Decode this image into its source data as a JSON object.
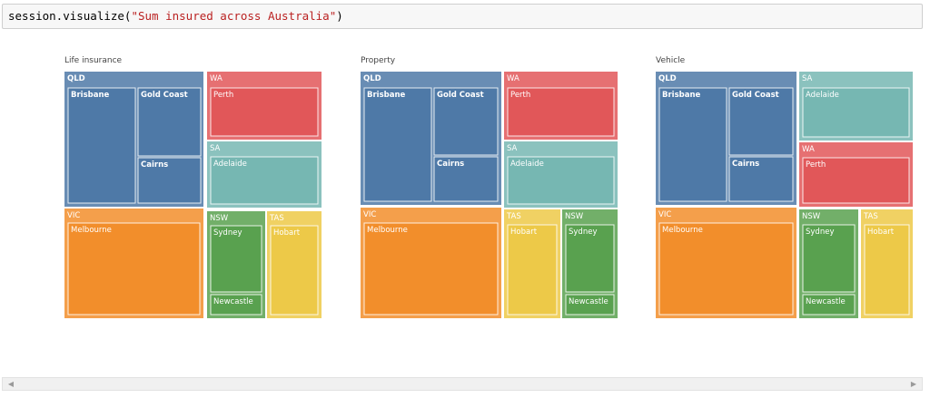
{
  "cell": {
    "code_prefix": "session.visualize(",
    "code_string": "\"Sum insured across Australia\"",
    "code_suffix": ")"
  },
  "colors": {
    "QLD": "#4e79a7",
    "WA": "#e15759",
    "SA": "#76b7b2",
    "VIC": "#f28e2b",
    "NSW": "#59a14f",
    "TAS": "#edc948"
  },
  "charts": [
    {
      "title": "Life insurance",
      "states": [
        {
          "name": "QLD",
          "cities": [
            "Brisbane",
            "Gold Coast",
            "Cairns"
          ]
        },
        {
          "name": "WA",
          "cities": [
            "Perth"
          ]
        },
        {
          "name": "SA",
          "cities": [
            "Adelaide"
          ]
        },
        {
          "name": "VIC",
          "cities": [
            "Melbourne"
          ]
        },
        {
          "name": "NSW",
          "cities": [
            "Sydney",
            "Newcastle"
          ]
        },
        {
          "name": "TAS",
          "cities": [
            "Hobart"
          ]
        }
      ]
    },
    {
      "title": "Property",
      "states": [
        {
          "name": "QLD",
          "cities": [
            "Brisbane",
            "Gold Coast",
            "Cairns"
          ]
        },
        {
          "name": "WA",
          "cities": [
            "Perth"
          ]
        },
        {
          "name": "SA",
          "cities": [
            "Adelaide"
          ]
        },
        {
          "name": "VIC",
          "cities": [
            "Melbourne"
          ]
        },
        {
          "name": "TAS",
          "cities": [
            "Hobart"
          ]
        },
        {
          "name": "NSW",
          "cities": [
            "Sydney",
            "Newcastle"
          ]
        }
      ]
    },
    {
      "title": "Vehicle",
      "states": [
        {
          "name": "QLD",
          "cities": [
            "Brisbane",
            "Gold Coast",
            "Cairns"
          ]
        },
        {
          "name": "SA",
          "cities": [
            "Adelaide"
          ]
        },
        {
          "name": "WA",
          "cities": [
            "Perth"
          ]
        },
        {
          "name": "VIC",
          "cities": [
            "Melbourne"
          ]
        },
        {
          "name": "NSW",
          "cities": [
            "Sydney",
            "Newcastle"
          ]
        },
        {
          "name": "TAS",
          "cities": [
            "Hobart"
          ]
        }
      ]
    }
  ],
  "scrollbar": {
    "left_arrow": "◀",
    "right_arrow": "▶"
  }
}
